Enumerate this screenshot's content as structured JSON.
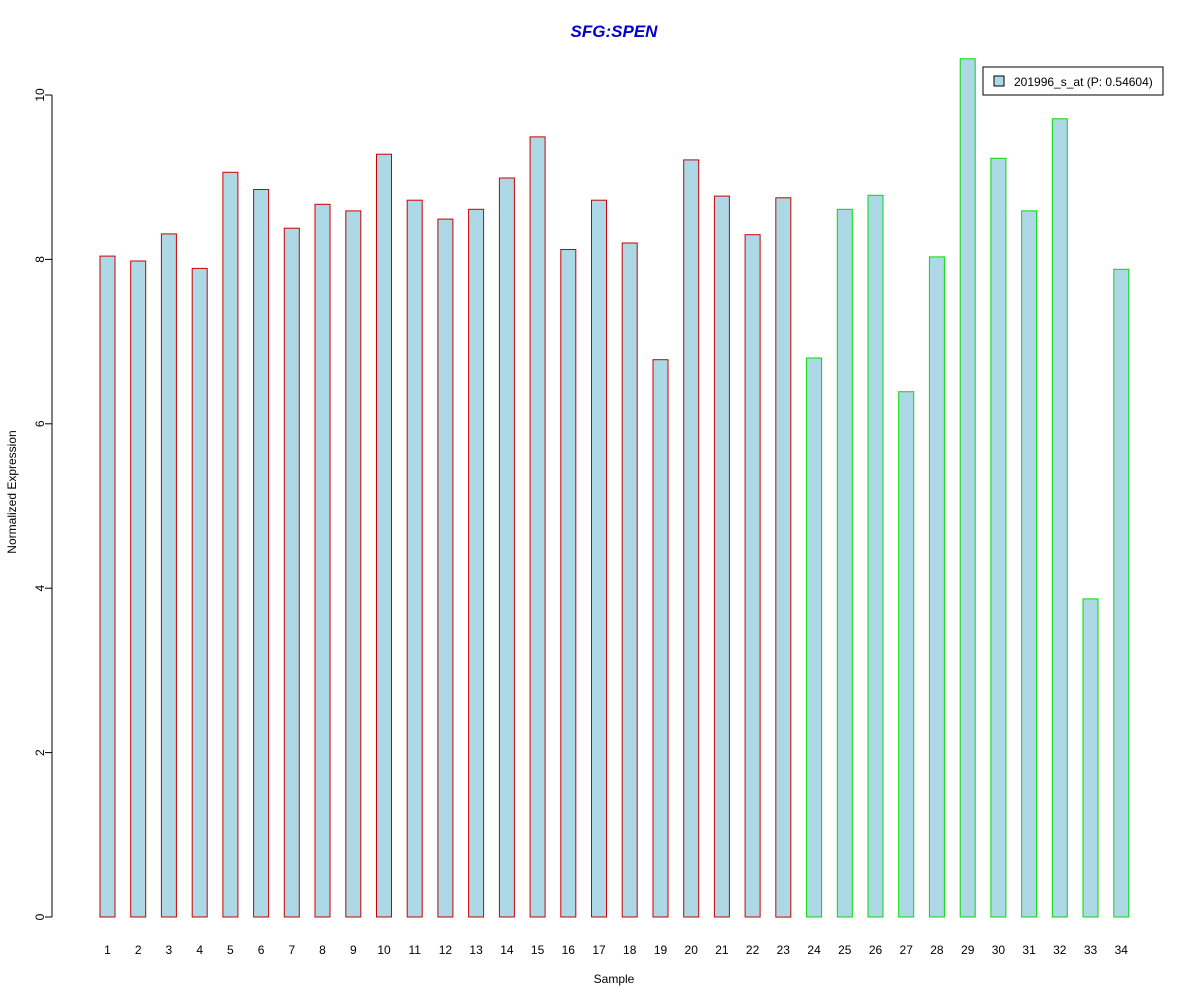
{
  "chart_data": {
    "type": "bar",
    "title": "SFG:SPEN",
    "xlabel": "Sample",
    "ylabel": "Normalized Expression",
    "ylim": [
      0,
      10.5
    ],
    "yticks": [
      0,
      2,
      4,
      6,
      8,
      10
    ],
    "categories": [
      "1",
      "2",
      "3",
      "4",
      "5",
      "6",
      "7",
      "8",
      "9",
      "10",
      "11",
      "12",
      "13",
      "14",
      "15",
      "16",
      "17",
      "18",
      "19",
      "20",
      "21",
      "22",
      "23",
      "24",
      "25",
      "26",
      "27",
      "28",
      "29",
      "30",
      "31",
      "32",
      "33",
      "34"
    ],
    "series": [
      {
        "name": "201996_s_at (P: 0.54604)",
        "values": [
          8.04,
          7.98,
          8.31,
          7.89,
          9.06,
          8.85,
          8.38,
          8.67,
          8.59,
          9.28,
          8.72,
          8.49,
          8.61,
          8.99,
          9.49,
          8.12,
          8.72,
          8.2,
          6.78,
          9.21,
          8.77,
          8.3,
          8.75,
          6.8,
          8.61,
          8.78,
          6.39,
          8.03,
          10.44,
          9.23,
          8.59,
          9.71,
          3.87,
          7.88
        ]
      }
    ],
    "group_colors": [
      "#cc0000",
      "#cc0000",
      "#cc0000",
      "#cc0000",
      "#cc0000",
      "#cc0000",
      "#cc0000",
      "#cc0000",
      "#cc0000",
      "#cc0000",
      "#cc0000",
      "#cc0000",
      "#cc0000",
      "#cc0000",
      "#cc0000",
      "#cc0000",
      "#cc0000",
      "#cc0000",
      "#cc0000",
      "#cc0000",
      "#cc0000",
      "#cc0000",
      "#cc0000",
      "#00dd00",
      "#00dd00",
      "#00dd00",
      "#00dd00",
      "#00dd00",
      "#00dd00",
      "#00dd00",
      "#00dd00",
      "#00dd00",
      "#00dd00",
      "#00dd00"
    ],
    "fill_color": "#add8e6",
    "title_color": "#0000cc",
    "legend_position": "top-right",
    "grid": false
  }
}
